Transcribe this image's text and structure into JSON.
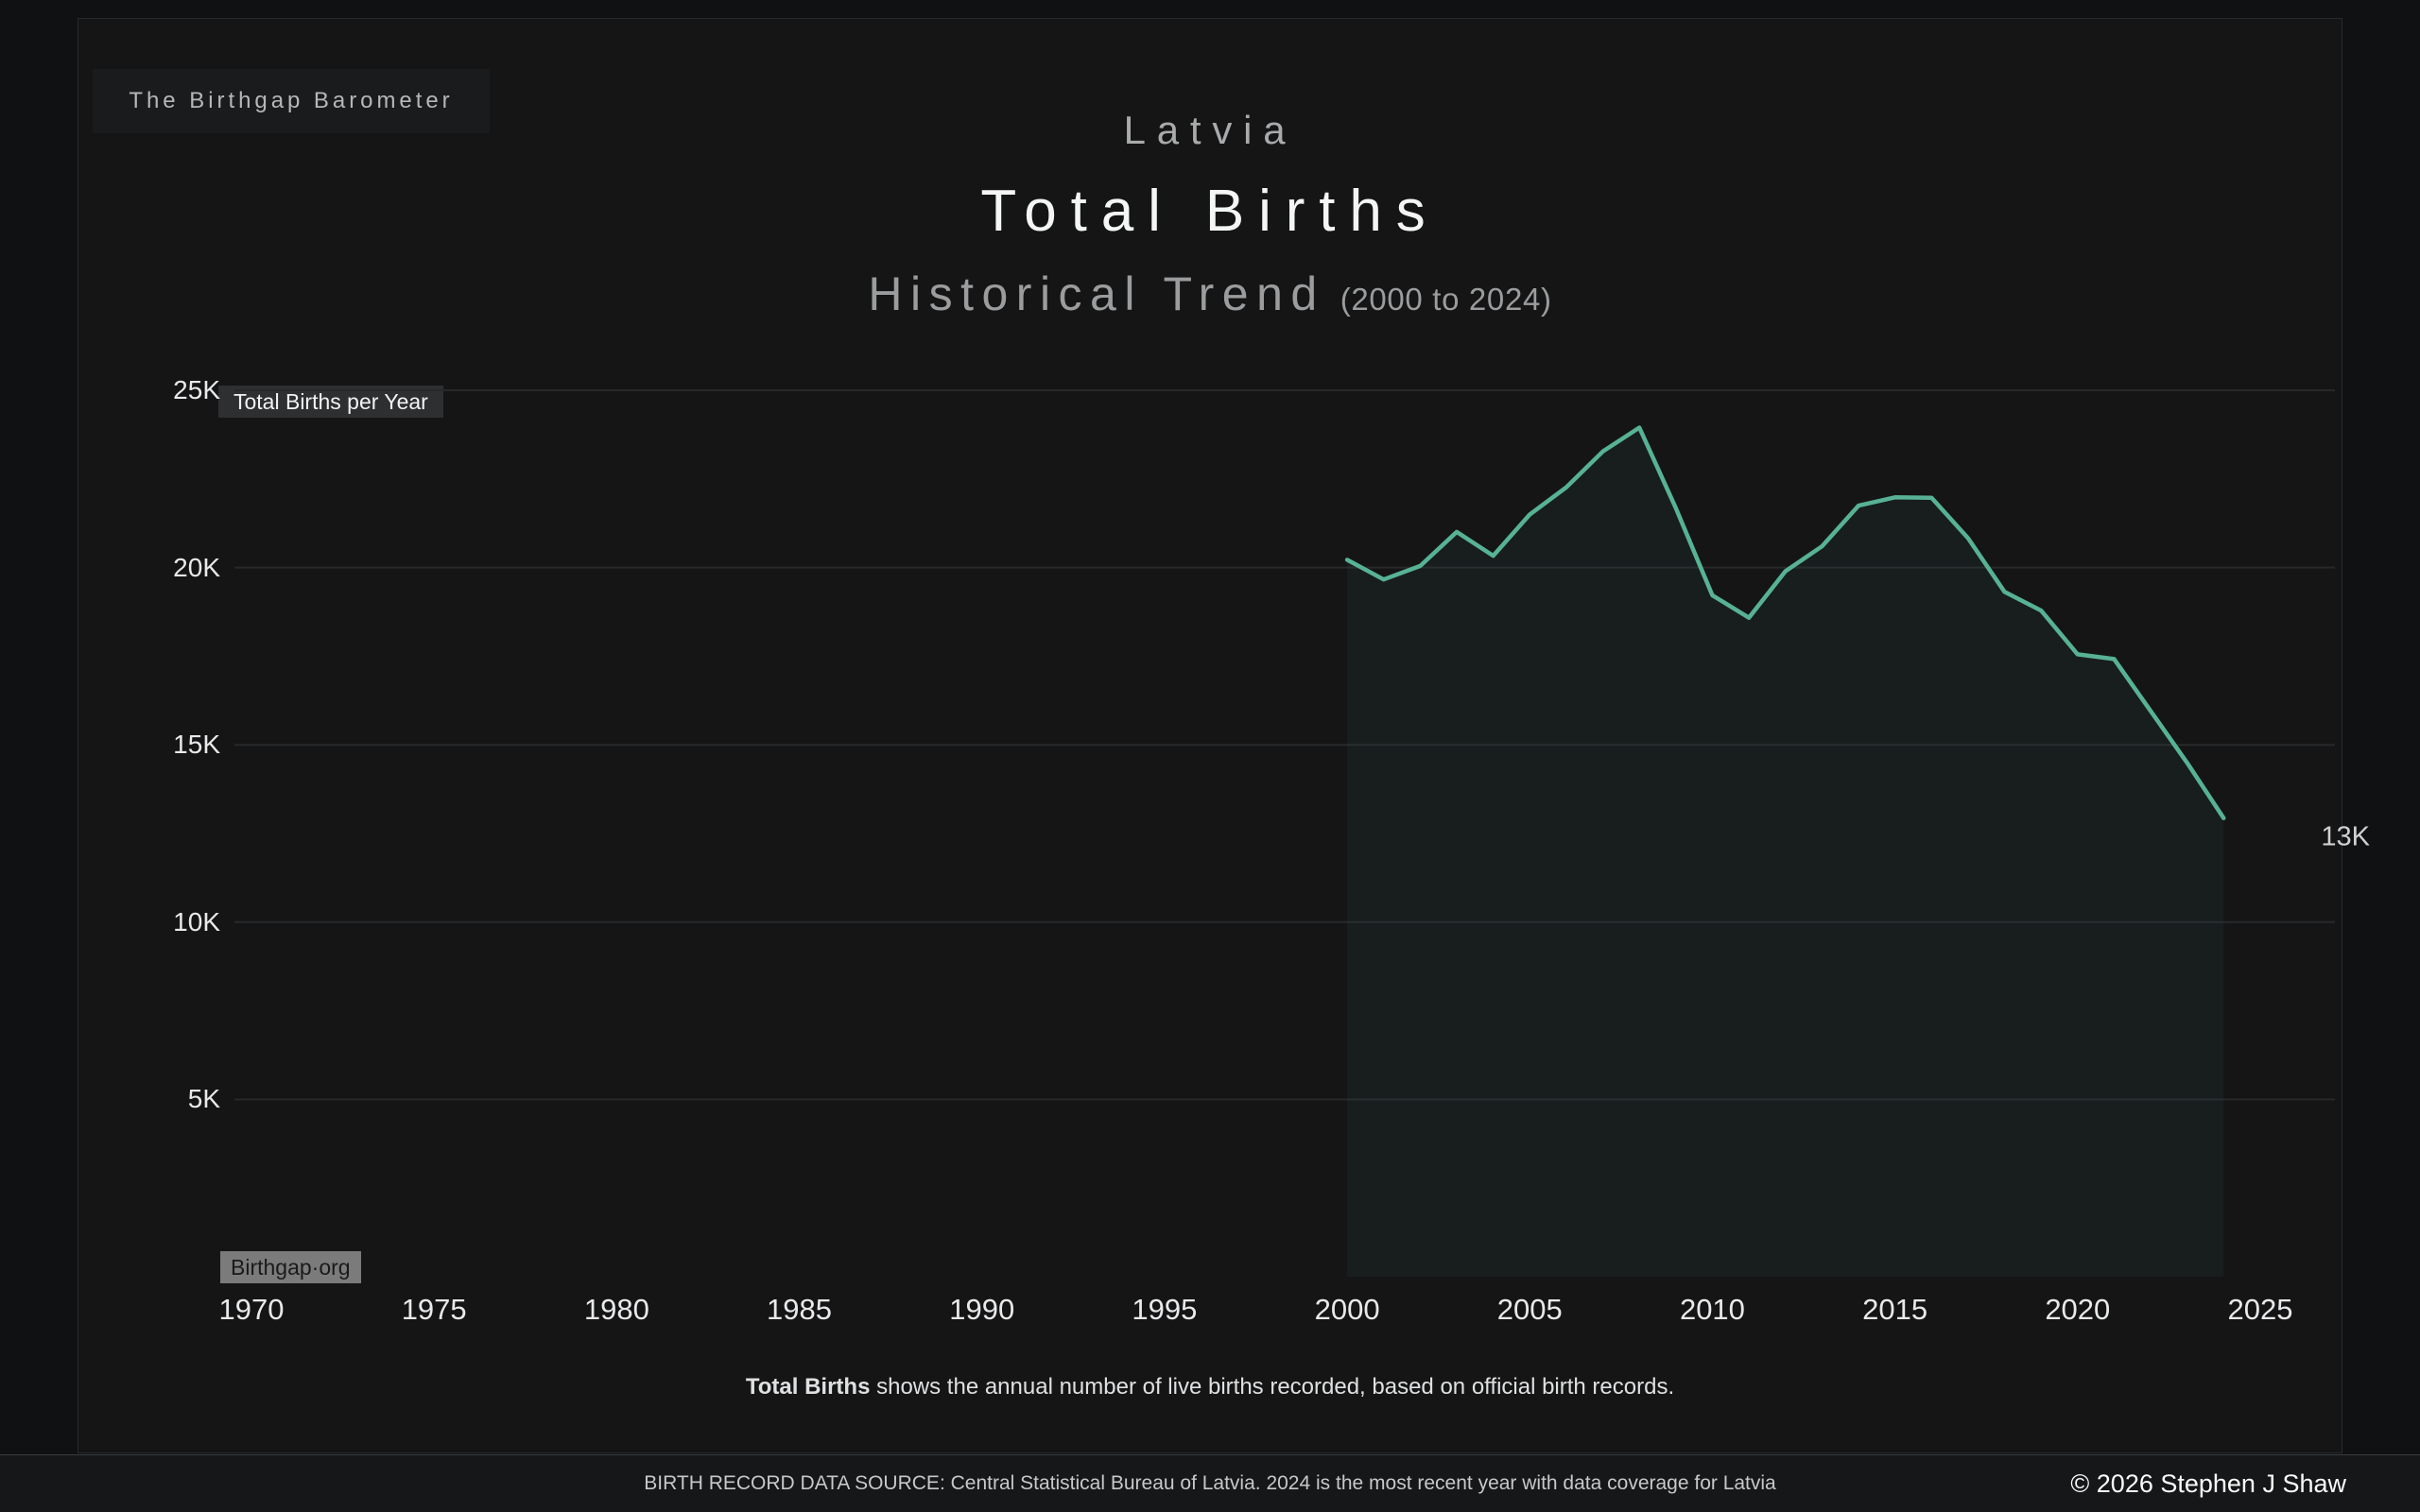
{
  "branding": {
    "badge": "The Birthgap Barometer",
    "watermark": "Birthgap·org"
  },
  "header": {
    "country": "Latvia",
    "title": "Total Births",
    "subtitle": "Historical Trend",
    "subtitle_range": "(2000 to 2024)"
  },
  "chart": {
    "series_label": "Total Births per Year",
    "end_label": "13K"
  },
  "footnote": {
    "term": "Total Births",
    "text": " shows the annual number of live births recorded, based on official birth records."
  },
  "footer": {
    "source": "BIRTH RECORD DATA SOURCE: Central Statistical Bureau of Latvia. 2024 is the most recent year with data coverage for Latvia",
    "copyright": "© 2026 Stephen J Shaw"
  },
  "colors": {
    "line": "#57b294",
    "area_fill": "rgba(87,178,148,0.06)",
    "gridline": "#27282a",
    "card_background": "#151516",
    "page_background": "#101113"
  },
  "chart_data": {
    "type": "area",
    "title": "Latvia — Total Births, Historical Trend (2000 to 2024)",
    "ylabel": "Total Births per Year",
    "x": [
      2000,
      2001,
      2002,
      2003,
      2004,
      2005,
      2006,
      2007,
      2008,
      2009,
      2010,
      2011,
      2012,
      2013,
      2014,
      2015,
      2016,
      2017,
      2018,
      2019,
      2020,
      2021,
      2022,
      2023,
      2024
    ],
    "values": [
      20219,
      19664,
      20044,
      21006,
      20334,
      21497,
      22264,
      23273,
      23948,
      21677,
      19219,
      18586,
      19897,
      20596,
      21746,
      21979,
      21968,
      20828,
      19314,
      18786,
      17552,
      17420,
      15954,
      14490,
      12935
    ],
    "end_label": "13K",
    "xticks": [
      {
        "v": 1970,
        "label": "1970"
      },
      {
        "v": 1975,
        "label": "1975"
      },
      {
        "v": 1980,
        "label": "1980"
      },
      {
        "v": 1985,
        "label": "1985"
      },
      {
        "v": 1990,
        "label": "1990"
      },
      {
        "v": 1995,
        "label": "1995"
      },
      {
        "v": 2000,
        "label": "2000"
      },
      {
        "v": 2005,
        "label": "2005"
      },
      {
        "v": 2010,
        "label": "2010"
      },
      {
        "v": 2015,
        "label": "2015"
      },
      {
        "v": 2020,
        "label": "2020"
      },
      {
        "v": 2025,
        "label": "2025"
      }
    ],
    "yticks": [
      {
        "v": 5000,
        "label": "5K"
      },
      {
        "v": 10000,
        "label": "10K"
      },
      {
        "v": 15000,
        "label": "15K"
      },
      {
        "v": 20000,
        "label": "20K"
      },
      {
        "v": 25000,
        "label": "25K"
      }
    ],
    "xlim": [
      1970,
      2025
    ],
    "ylim": [
      0,
      25000
    ],
    "grid": true,
    "legend_position": "top-left"
  }
}
